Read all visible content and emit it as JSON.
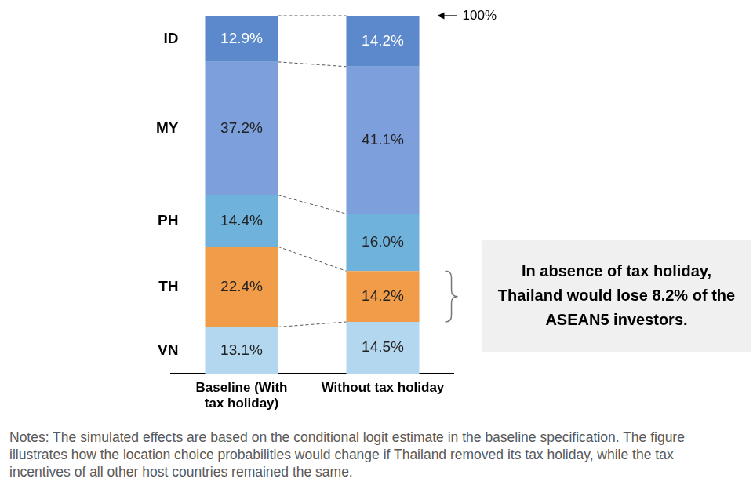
{
  "chart_data": {
    "type": "bar",
    "stacked": true,
    "categories": [
      "Baseline (With tax holiday)",
      "Without tax holiday"
    ],
    "series": [
      {
        "name": "VN",
        "color": "#b4d7f0",
        "values": [
          13.1,
          14.5
        ],
        "value_labels": [
          "13.1%",
          "14.5%"
        ]
      },
      {
        "name": "TH",
        "color": "#f19c48",
        "values": [
          22.4,
          14.2
        ],
        "value_labels": [
          "22.4%",
          "14.2%"
        ]
      },
      {
        "name": "PH",
        "color": "#6fb3dd",
        "values": [
          14.4,
          16.0
        ],
        "value_labels": [
          "14.4%",
          "16.0%"
        ]
      },
      {
        "name": "MY",
        "color": "#7d9fdb",
        "values": [
          37.2,
          41.1
        ],
        "value_labels": [
          "37.2%",
          "41.1%"
        ]
      },
      {
        "name": "ID",
        "color": "#5b89cc",
        "values": [
          12.9,
          14.2
        ],
        "value_labels": [
          "12.9%",
          "14.2%"
        ]
      }
    ],
    "ylim": [
      0,
      100
    ],
    "tick_labels": "x",
    "data_labels": true,
    "annotations": [
      {
        "text": "100%",
        "y": 100
      },
      {
        "text": "In absence of tax holiday, Thailand would lose 8.2% of the ASEAN5 investors.",
        "series": "TH",
        "category": "Without tax holiday"
      }
    ],
    "notes": "Notes: The simulated effects are based on the conditional logit estimate in the baseline specification. The figure illustrates how the location choice probabilities would change if Thailand removed its tax holiday, while the tax incentives of all other host countries remained the same."
  }
}
